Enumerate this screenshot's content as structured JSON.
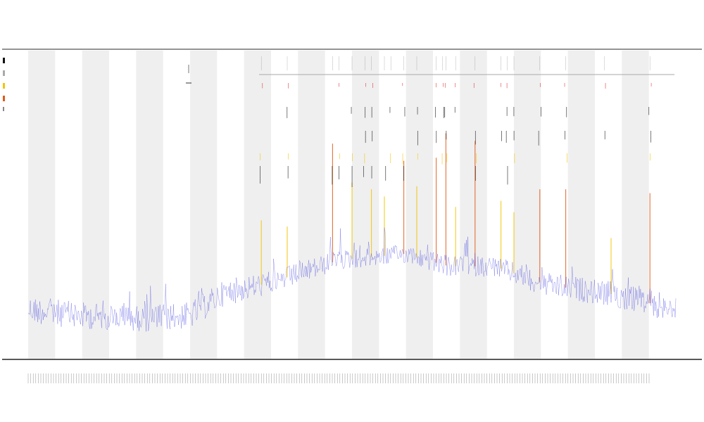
{
  "chart_data": {
    "type": "line",
    "title": "",
    "subtitles": [],
    "xlabel": "",
    "ylabel": "",
    "legend_placement": "top-left",
    "grid": false,
    "band_count": 24,
    "band_color": "#efefef",
    "signal_color": "#3a3ae0",
    "peak_colors": {
      "high": "#e05a1a",
      "mid": "#f3c400",
      "marker": "#111111",
      "dot": "#e03030"
    },
    "baseline_profile": [
      {
        "x": 0.0,
        "y": 0.84
      },
      {
        "x": 0.08,
        "y": 0.86
      },
      {
        "x": 0.18,
        "y": 0.87
      },
      {
        "x": 0.25,
        "y": 0.86
      },
      {
        "x": 0.3,
        "y": 0.79
      },
      {
        "x": 0.38,
        "y": 0.75
      },
      {
        "x": 0.48,
        "y": 0.68
      },
      {
        "x": 0.58,
        "y": 0.66
      },
      {
        "x": 0.65,
        "y": 0.7
      },
      {
        "x": 0.72,
        "y": 0.7
      },
      {
        "x": 0.8,
        "y": 0.76
      },
      {
        "x": 0.9,
        "y": 0.79
      },
      {
        "x": 1.0,
        "y": 0.84
      }
    ],
    "peaks": [
      {
        "x": 0.36,
        "h": 0.38,
        "c": "mid"
      },
      {
        "x": 0.4,
        "h": 0.3,
        "c": "mid"
      },
      {
        "x": 0.47,
        "h": 0.7,
        "c": "high"
      },
      {
        "x": 0.5,
        "h": 0.45,
        "c": "mid"
      },
      {
        "x": 0.53,
        "h": 0.4,
        "c": "mid"
      },
      {
        "x": 0.55,
        "h": 0.35,
        "c": "mid"
      },
      {
        "x": 0.58,
        "h": 0.55,
        "c": "high"
      },
      {
        "x": 0.6,
        "h": 0.42,
        "c": "mid"
      },
      {
        "x": 0.63,
        "h": 0.62,
        "c": "high"
      },
      {
        "x": 0.645,
        "h": 0.78,
        "c": "high"
      },
      {
        "x": 0.66,
        "h": 0.35,
        "c": "mid"
      },
      {
        "x": 0.69,
        "h": 0.74,
        "c": "high"
      },
      {
        "x": 0.73,
        "h": 0.4,
        "c": "mid"
      },
      {
        "x": 0.75,
        "h": 0.36,
        "c": "mid"
      },
      {
        "x": 0.79,
        "h": 0.55,
        "c": "high"
      },
      {
        "x": 0.83,
        "h": 0.58,
        "c": "high"
      },
      {
        "x": 0.9,
        "h": 0.33,
        "c": "mid"
      },
      {
        "x": 0.96,
        "h": 0.65,
        "c": "high"
      }
    ],
    "legend_swatches": [
      "#111111",
      "#aaaaaa",
      "#f3c400",
      "#e05a1a"
    ]
  }
}
